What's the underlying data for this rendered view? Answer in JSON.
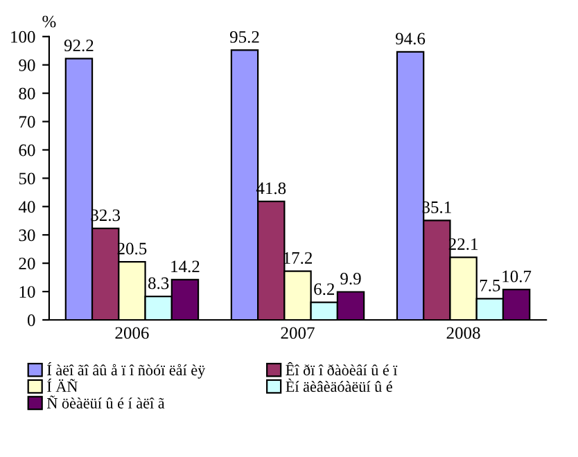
{
  "chart_data": {
    "type": "bar",
    "ylabel": "%",
    "categories": [
      "2006",
      "2007",
      "2008"
    ],
    "series": [
      {
        "name": "Í àëî ãî âû å ï î ñòóï ëåí èÿ",
        "color": "#9999ff",
        "values": [
          92.2,
          95.2,
          94.6
        ]
      },
      {
        "name": "Êî ðï î ðàòèâí û é ï",
        "color": "#993366",
        "values": [
          32.3,
          41.8,
          35.1
        ]
      },
      {
        "name": "Í ÄÑ",
        "color": "#ffffcc",
        "values": [
          20.5,
          17.2,
          22.1
        ]
      },
      {
        "name": "Èí äèâèäóàëüí û é",
        "color": "#ccffff",
        "values": [
          8.3,
          6.2,
          7.5
        ]
      },
      {
        "name": "Ñ öèàëüí û é í àëî ã",
        "color": "#660066",
        "values": [
          14.2,
          9.9,
          10.7
        ]
      }
    ],
    "ylim": [
      0,
      100
    ],
    "yticks": [
      0,
      10,
      20,
      30,
      40,
      50,
      60,
      70,
      80,
      90,
      100
    ],
    "grid": false,
    "legend": "bottom",
    "data_labels": true
  }
}
